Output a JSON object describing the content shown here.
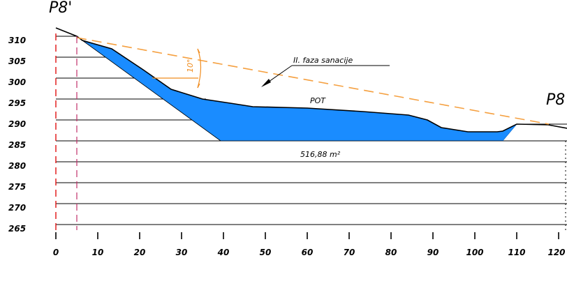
{
  "profile": {
    "left_label": "P8'",
    "right_label": "P8",
    "phase_label": "II. faza sanacije",
    "path_label": "POT",
    "area_label": "516,88 m²",
    "angle_label": "10°"
  },
  "axes": {
    "x_ticks": [
      "0",
      "10",
      "20",
      "30",
      "40",
      "50",
      "60",
      "70",
      "80",
      "90",
      "100",
      "110",
      "120"
    ],
    "y_ticks": [
      "310",
      "305",
      "300",
      "295",
      "290",
      "285",
      "280",
      "275",
      "270",
      "265"
    ],
    "xlim": [
      0,
      120
    ],
    "ylim": [
      265,
      312
    ]
  },
  "colors": {
    "fill": "#1a8cff",
    "dashed_line": "#f5a040",
    "left_axis": "#e01010",
    "magenta": "#c0306a"
  }
}
